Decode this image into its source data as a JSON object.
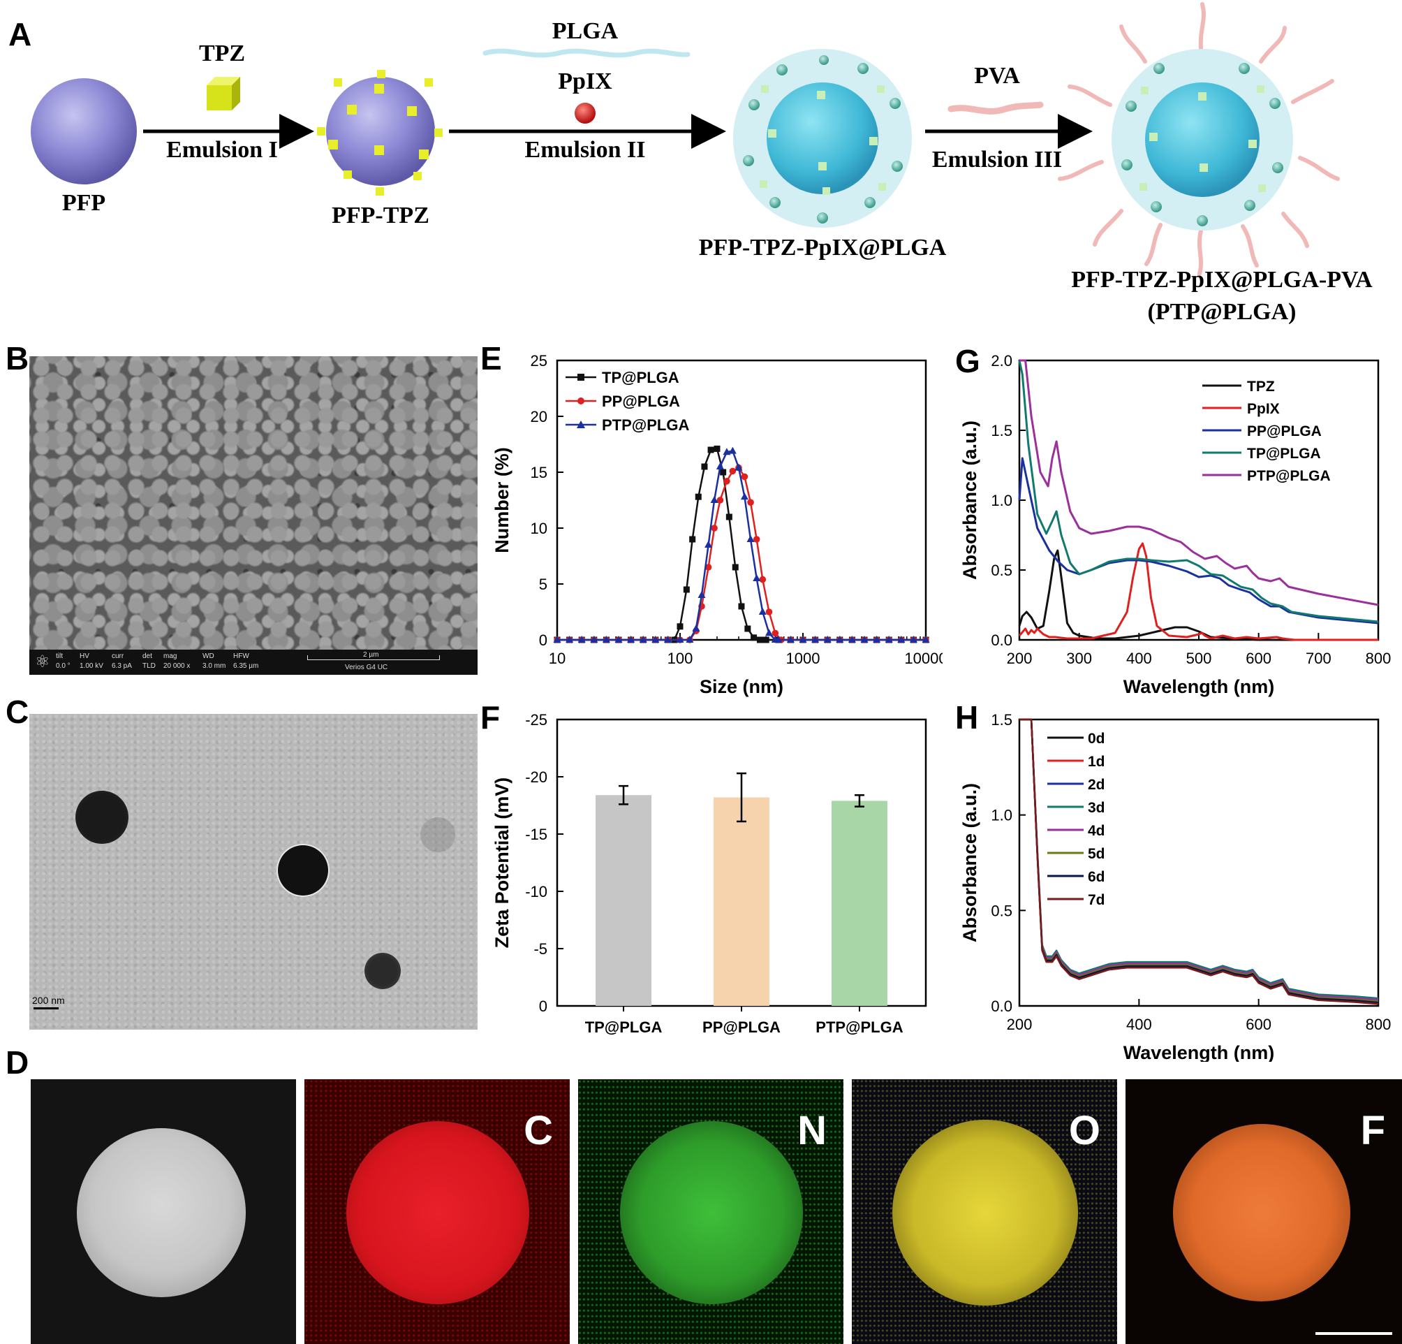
{
  "panel_letters": {
    "a": "A",
    "b": "B",
    "c": "C",
    "d": "D",
    "e": "E",
    "f": "F",
    "g": "G",
    "h": "H"
  },
  "scheme": {
    "pfp": "PFP",
    "tpz": "TPZ",
    "emulsion1": "Emulsion I",
    "pfp_tpz": "PFP-TPZ",
    "plga": "PLGA",
    "ppix": "PpIX",
    "emulsion2": "Emulsion II",
    "pfp_tpz_ppix_plga": "PFP-TPZ-PpIX@PLGA",
    "pva": "PVA",
    "emulsion3": "Emulsion III",
    "final_name": "PFP-TPZ-PpIX@PLGA-PVA",
    "final_abbrev": "(PTP@PLGA)"
  },
  "sem": {
    "tilt_h": "tilt",
    "tilt_v": "0.0 °",
    "hv_h": "HV",
    "hv_v": "1.00 kV",
    "curr_h": "curr",
    "curr_v": "6.3 pA",
    "det_h": "det",
    "det_v": "TLD",
    "mag_h": "mag",
    "mag_v": "20 000 x",
    "wd_h": "WD",
    "wd_v": "3.0 mm",
    "hfw_h": "HFW",
    "hfw_v": "6.35 µm",
    "scale": "2 µm",
    "instrument": "Verios G4 UC"
  },
  "tem": {
    "scale": "200 nm"
  },
  "edx_labels": [
    "C",
    "N",
    "O",
    "F"
  ],
  "colors": {
    "tp": "#111111",
    "pp": "#e0201e",
    "ptp": "#1a2fa0",
    "tpz": "#111111",
    "ppix": "#e0201e",
    "pp_plga": "#1a2fa0",
    "tp_plga": "#117a6e",
    "ptp_plga": "#9b2f9b",
    "bar_tp": "#c6c6c6",
    "bar_pp": "#f6d3ad",
    "bar_ptp": "#a9d6a6",
    "edx_c": "#e8202a",
    "edx_n": "#3fbf3a",
    "edx_o": "#e6d63a",
    "edx_f": "#ef7b3a"
  },
  "chart_data": [
    {
      "panel": "E",
      "type": "line",
      "xscale": "log",
      "xlabel": "Size (nm)",
      "ylabel": "Number (%)",
      "xlim": [
        10,
        10000
      ],
      "ylim": [
        0,
        25
      ],
      "xticks": [
        "10",
        "100",
        "1000",
        "10000"
      ],
      "yticks": [
        "0",
        "5",
        "10",
        "15",
        "20",
        "25"
      ],
      "legend": [
        "TP@PLGA",
        "PP@PLGA",
        "PTP@PLGA"
      ],
      "series": [
        {
          "name": "TP@PLGA",
          "marker": "square",
          "x": [
            90,
            100,
            113,
            126,
            141,
            158,
            178,
            200,
            224,
            251,
            282,
            316,
            355,
            398,
            447
          ],
          "y": [
            0,
            1.2,
            4.5,
            9.0,
            12.8,
            15.5,
            17.0,
            17.1,
            15.0,
            11.0,
            6.5,
            3.0,
            1.0,
            0.2,
            0
          ]
        },
        {
          "name": "PP@PLGA",
          "marker": "circle",
          "x": [
            120,
            135,
            150,
            170,
            190,
            212,
            240,
            268,
            300,
            335,
            375,
            420,
            470,
            530,
            595,
            665
          ],
          "y": [
            0,
            0.8,
            3.0,
            6.5,
            10.0,
            12.5,
            14.2,
            15.1,
            15.4,
            14.6,
            12.3,
            9.0,
            5.4,
            2.5,
            0.6,
            0
          ]
        },
        {
          "name": "PTP@PLGA",
          "marker": "triangle",
          "x": [
            120,
            135,
            150,
            170,
            190,
            212,
            240,
            268,
            300,
            335,
            375,
            420,
            470,
            530,
            595
          ],
          "y": [
            0,
            1.0,
            4.0,
            8.5,
            12.5,
            15.5,
            16.8,
            16.9,
            15.4,
            12.8,
            9.0,
            5.5,
            2.5,
            0.6,
            0
          ]
        }
      ],
      "baseline_series": "0"
    },
    {
      "panel": "F",
      "type": "bar",
      "xlabel": "",
      "ylabel": "Zeta Potential (mV)",
      "ylim": [
        0,
        -25
      ],
      "yticks": [
        "0",
        "-5",
        "-10",
        "-15",
        "-20",
        "-25"
      ],
      "categories": [
        "TP@PLGA",
        "PP@PLGA",
        "PTP@PLGA"
      ],
      "values": [
        -18.4,
        -18.2,
        -17.9
      ],
      "errors": [
        0.8,
        2.1,
        0.5
      ]
    },
    {
      "panel": "G",
      "type": "line",
      "xlabel": "Wavelength (nm)",
      "ylabel": "Absorbance (a.u.)",
      "xlim": [
        200,
        800
      ],
      "ylim": [
        0,
        2.0
      ],
      "xticks": [
        "200",
        "300",
        "400",
        "500",
        "600",
        "700",
        "800"
      ],
      "yticks": [
        "0.0",
        "0.5",
        "1.0",
        "1.5",
        "2.0"
      ],
      "legend": [
        "TPZ",
        "PpIX",
        "PP@PLGA",
        "TP@PLGA",
        "PTP@PLGA"
      ],
      "series": [
        {
          "name": "TPZ",
          "x": [
            200,
            205,
            212,
            220,
            230,
            240,
            250,
            258,
            264,
            270,
            280,
            290,
            300,
            330,
            360,
            400,
            430,
            460,
            480,
            500,
            520,
            560,
            600,
            700,
            800
          ],
          "y": [
            0.1,
            0.17,
            0.2,
            0.16,
            0.08,
            0.1,
            0.35,
            0.58,
            0.64,
            0.45,
            0.12,
            0.05,
            0.03,
            0.01,
            0.01,
            0.03,
            0.06,
            0.09,
            0.09,
            0.06,
            0.02,
            0.01,
            0.0,
            0.0,
            0.0
          ]
        },
        {
          "name": "PpIX",
          "x": [
            200,
            210,
            215,
            220,
            225,
            230,
            240,
            250,
            260,
            280,
            320,
            360,
            380,
            390,
            400,
            406,
            412,
            420,
            430,
            450,
            480,
            500,
            505,
            510,
            520,
            540,
            560,
            580,
            600,
            630,
            640,
            660,
            700,
            800
          ],
          "y": [
            0.03,
            0.08,
            0.04,
            0.07,
            0.05,
            0.08,
            0.04,
            0.02,
            0.02,
            0.01,
            0.01,
            0.05,
            0.2,
            0.45,
            0.65,
            0.69,
            0.6,
            0.3,
            0.1,
            0.03,
            0.02,
            0.04,
            0.05,
            0.03,
            0.01,
            0.03,
            0.01,
            0.02,
            0.01,
            0.02,
            0.01,
            0.0,
            0.0,
            0.0
          ]
        },
        {
          "name": "PP@PLGA",
          "x": [
            200,
            205,
            215,
            230,
            250,
            265,
            280,
            300,
            320,
            350,
            380,
            400,
            420,
            450,
            480,
            500,
            520,
            535,
            550,
            570,
            585,
            600,
            620,
            635,
            650,
            700,
            800
          ],
          "y": [
            1.0,
            1.3,
            1.1,
            0.8,
            0.64,
            0.56,
            0.5,
            0.47,
            0.5,
            0.55,
            0.57,
            0.57,
            0.56,
            0.53,
            0.49,
            0.45,
            0.46,
            0.44,
            0.39,
            0.36,
            0.34,
            0.29,
            0.24,
            0.24,
            0.2,
            0.16,
            0.12
          ]
        },
        {
          "name": "TP@PLGA",
          "x": [
            200,
            205,
            215,
            230,
            245,
            255,
            262,
            270,
            285,
            300,
            320,
            350,
            380,
            400,
            420,
            450,
            480,
            500,
            520,
            540,
            555,
            570,
            590,
            605,
            620,
            640,
            655,
            700,
            800
          ],
          "y": [
            2.0,
            1.9,
            1.4,
            0.9,
            0.76,
            0.85,
            0.92,
            0.75,
            0.55,
            0.47,
            0.5,
            0.56,
            0.58,
            0.58,
            0.57,
            0.56,
            0.57,
            0.53,
            0.47,
            0.46,
            0.42,
            0.38,
            0.36,
            0.3,
            0.26,
            0.24,
            0.2,
            0.17,
            0.13
          ]
        },
        {
          "name": "PTP@PLGA",
          "x": [
            200,
            210,
            220,
            235,
            248,
            255,
            262,
            270,
            285,
            300,
            320,
            350,
            380,
            400,
            420,
            450,
            470,
            490,
            510,
            530,
            545,
            560,
            580,
            590,
            600,
            620,
            635,
            650,
            700,
            800
          ],
          "y": [
            2.0,
            2.0,
            1.6,
            1.2,
            1.1,
            1.3,
            1.42,
            1.2,
            0.92,
            0.8,
            0.76,
            0.78,
            0.81,
            0.81,
            0.79,
            0.73,
            0.7,
            0.63,
            0.58,
            0.6,
            0.55,
            0.51,
            0.53,
            0.48,
            0.44,
            0.42,
            0.44,
            0.38,
            0.33,
            0.25
          ]
        }
      ]
    },
    {
      "panel": "H",
      "type": "line",
      "xlabel": "Wavelength (nm)",
      "ylabel": "Absorbance (a.u.)",
      "xlim": [
        200,
        800
      ],
      "ylim": [
        0,
        1.5
      ],
      "xticks": [
        "200",
        "400",
        "600",
        "800"
      ],
      "yticks": [
        "0.0",
        "0.5",
        "1.0",
        "1.5"
      ],
      "legend": [
        "0d",
        "1d",
        "2d",
        "3d",
        "4d",
        "5d",
        "6d",
        "7d"
      ],
      "series_colors": [
        "#111111",
        "#e0201e",
        "#1a2fa0",
        "#117a6e",
        "#9b2f9b",
        "#6a7a10",
        "#0c1640",
        "#7a1a1a"
      ],
      "x": [
        200,
        210,
        220,
        230,
        238,
        245,
        255,
        262,
        270,
        285,
        300,
        320,
        350,
        380,
        400,
        430,
        460,
        480,
        500,
        520,
        540,
        560,
        580,
        590,
        600,
        620,
        630,
        640,
        650,
        700,
        760,
        800
      ],
      "y": [
        1.5,
        1.5,
        1.5,
        0.8,
        0.3,
        0.24,
        0.24,
        0.27,
        0.22,
        0.17,
        0.15,
        0.17,
        0.2,
        0.21,
        0.21,
        0.21,
        0.21,
        0.21,
        0.19,
        0.17,
        0.19,
        0.17,
        0.16,
        0.17,
        0.13,
        0.1,
        0.11,
        0.12,
        0.07,
        0.04,
        0.03,
        0.02
      ],
      "offsets": [
        0.0,
        -0.005,
        0.008,
        0.02,
        0.012,
        0.004,
        -0.002,
        -0.01
      ]
    }
  ]
}
